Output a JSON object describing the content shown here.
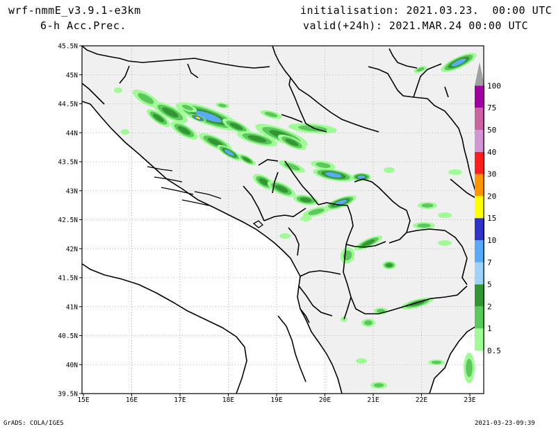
{
  "header": {
    "model": "wrf-nmmE_v3.9.1-e3km",
    "field": "6-h Acc.Prec.",
    "init": "initialisation: 2021.03.23.  00:00 UTC",
    "valid": "valid(+24h): 2021.MAR.24 00:00 UTC"
  },
  "footer": {
    "left": "GrADS: COLA/IGES",
    "right": "2021-03-23-09:39"
  },
  "map": {
    "lat_labels": [
      "45.5N",
      "45N",
      "44.5N",
      "44N",
      "43.5N",
      "43N",
      "42.5N",
      "42N",
      "41.5N",
      "41N",
      "40.5N",
      "40N",
      "39.5N"
    ],
    "lon_labels": [
      "15E",
      "16E",
      "17E",
      "18E",
      "19E",
      "20E",
      "21E",
      "22E",
      "23E"
    ],
    "land_color": "#f0f0f0"
  },
  "legend": {
    "colors": [
      "#a0fa96",
      "#5ac85a",
      "#329632",
      "#9ed2fa",
      "#5aaafa",
      "#3232c8",
      "#ffff00",
      "#ff9600",
      "#ff1e1e",
      "#d296d2",
      "#c864a0",
      "#a000a0",
      "#a0a0a0"
    ],
    "labels": [
      "0.5",
      "1",
      "2",
      "5",
      "7",
      "10",
      "15",
      "20",
      "30",
      "40",
      "50",
      "75",
      "100"
    ]
  }
}
